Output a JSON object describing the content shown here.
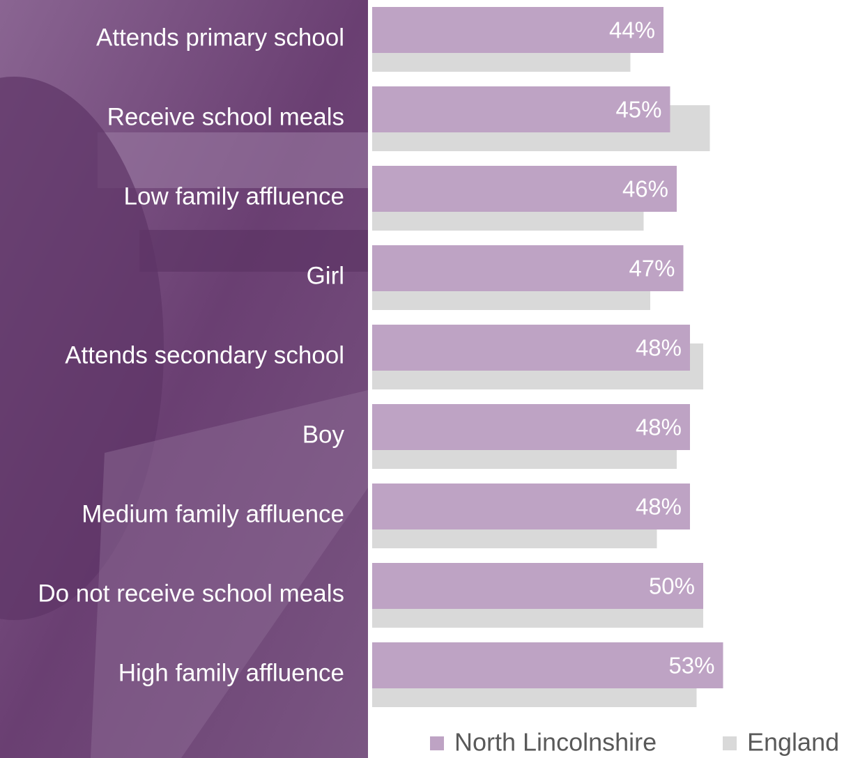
{
  "chart_data": {
    "type": "bar",
    "orientation": "horizontal",
    "categories": [
      "Attends primary school",
      "Receive school meals",
      "Low family affluence",
      "Girl",
      "Attends secondary school",
      "Boy",
      "Medium family affluence",
      "Do not receive school meals",
      "High family affluence"
    ],
    "series": [
      {
        "name": "North Lincolnshire",
        "color": "#bea3c4",
        "values": [
          44,
          45,
          46,
          47,
          48,
          48,
          48,
          50,
          53
        ],
        "value_labels": [
          "44%",
          "45%",
          "46%",
          "47%",
          "48%",
          "48%",
          "48%",
          "50%",
          "53%"
        ]
      },
      {
        "name": "England",
        "color": "#d9d9d9",
        "values": [
          39,
          51,
          41,
          42,
          50,
          46,
          43,
          50,
          49
        ]
      }
    ]
  }
}
